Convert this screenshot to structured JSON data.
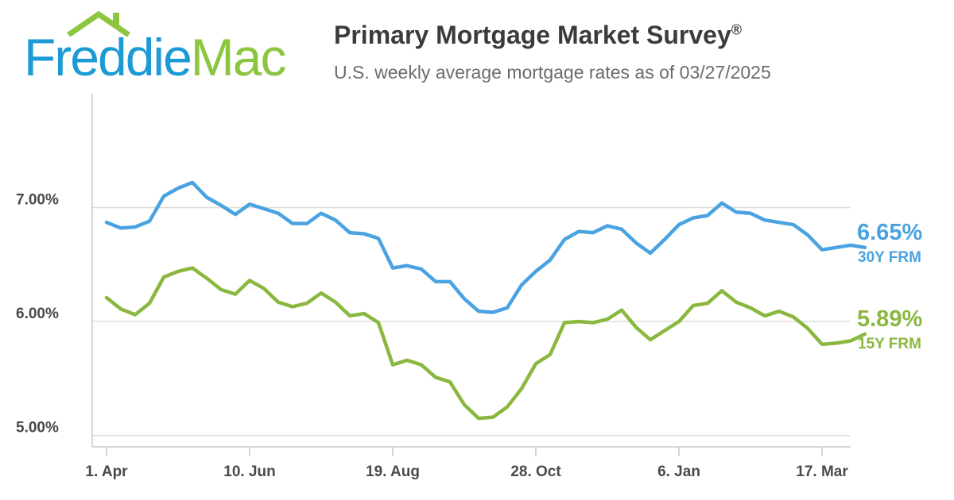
{
  "header": {
    "logo_freddie": "Freddie",
    "logo_mac": "Mac",
    "title": "Primary Mortgage Market Survey",
    "title_mark": "®",
    "subtitle": "U.S. weekly average mortgage rates as of 03/27/2025"
  },
  "colors": {
    "brand_blue": "#1c9ad6",
    "brand_green": "#8cc63f",
    "series_30y": "#4aa3e0",
    "series_15y": "#8ab83f",
    "grid": "#dddddd",
    "axis": "#c8c8c8"
  },
  "chart_data": {
    "type": "line",
    "x_tick_labels": [
      "1. Apr",
      "10. Jun",
      "19. Aug",
      "28. Oct",
      "6. Jan",
      "17. Mar"
    ],
    "y_tick_labels": [
      "5.00%",
      "6.00%",
      "7.00%"
    ],
    "y_ticks": [
      5.0,
      6.0,
      7.0
    ],
    "ylim": [
      4.9,
      8.0
    ],
    "x_range_weeks": [
      -1,
      52
    ],
    "x_tick_weeks": [
      0,
      10,
      20,
      30,
      40,
      50
    ],
    "grid": true,
    "series": [
      {
        "name": "30Y FRM",
        "end_label": "6.65%",
        "color": "#4aa3e0",
        "values": [
          6.87,
          6.82,
          6.83,
          6.88,
          7.1,
          7.17,
          7.22,
          7.09,
          7.02,
          6.94,
          7.03,
          6.99,
          6.95,
          6.86,
          6.86,
          6.95,
          6.89,
          6.78,
          6.77,
          6.73,
          6.47,
          6.49,
          6.46,
          6.35,
          6.35,
          6.2,
          6.09,
          6.08,
          6.12,
          6.32,
          6.44,
          6.54,
          6.72,
          6.79,
          6.78,
          6.84,
          6.81,
          6.69,
          6.6,
          6.72,
          6.85,
          6.91,
          6.93,
          7.04,
          6.96,
          6.95,
          6.89,
          6.87,
          6.85,
          6.76,
          6.63,
          6.65,
          6.67,
          6.65
        ]
      },
      {
        "name": "15Y FRM",
        "end_label": "5.89%",
        "color": "#8ab83f",
        "values": [
          6.21,
          6.11,
          6.06,
          6.16,
          6.39,
          6.44,
          6.47,
          6.38,
          6.28,
          6.24,
          6.36,
          6.29,
          6.17,
          6.13,
          6.16,
          6.25,
          6.17,
          6.05,
          6.07,
          5.99,
          5.62,
          5.66,
          5.62,
          5.51,
          5.47,
          5.27,
          5.15,
          5.16,
          5.25,
          5.41,
          5.63,
          5.71,
          5.99,
          6.0,
          5.99,
          6.02,
          6.1,
          5.95,
          5.84,
          5.92,
          6.0,
          6.14,
          6.16,
          6.27,
          6.17,
          6.12,
          6.05,
          6.09,
          6.04,
          5.94,
          5.8,
          5.81,
          5.83,
          5.89
        ]
      }
    ]
  }
}
